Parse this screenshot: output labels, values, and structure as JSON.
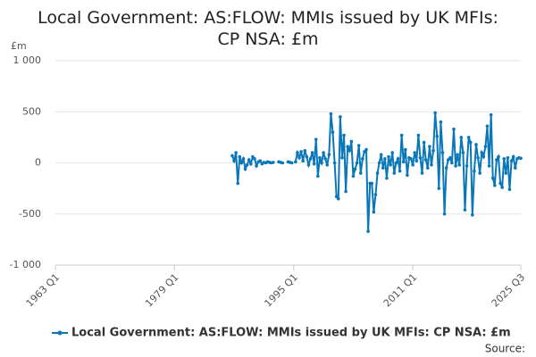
{
  "chart_data": {
    "type": "line",
    "title": "Local Government: AS:FLOW: MMIs issued by UK MFIs: CP NSA: £m",
    "y_label": "£m",
    "source": "Source:",
    "x": [
      1986.75,
      1987,
      1987.25,
      1987.5,
      1987.75,
      1988,
      1988.25,
      1988.5,
      1988.75,
      1989,
      1989.25,
      1989.5,
      1989.75,
      1990,
      1990.25,
      1990.5,
      1990.75,
      1991,
      1991.25,
      1991.5,
      1991.75,
      1992,
      1992.25,
      1992.5,
      1992.75,
      1993,
      1993.25,
      1993.5,
      1993.75,
      1994,
      1994.25,
      1994.5,
      1994.75,
      1995,
      1995.25,
      1995.5,
      1995.75,
      1996,
      1996.25,
      1996.5,
      1996.75,
      1997,
      1997.25,
      1997.5,
      1997.75,
      1998,
      1998.25,
      1998.5,
      1998.75,
      1999,
      1999.25,
      1999.5,
      1999.75,
      2000,
      2000.25,
      2000.5,
      2000.75,
      2001,
      2001.25,
      2001.5,
      2001.75,
      2002,
      2002.25,
      2002.5,
      2002.75,
      2003,
      2003.25,
      2003.5,
      2003.75,
      2004,
      2004.25,
      2004.5,
      2004.75,
      2005,
      2005.25,
      2005.5,
      2005.75,
      2006,
      2006.25,
      2006.5,
      2006.75,
      2007,
      2007.25,
      2007.5,
      2007.75,
      2008,
      2008.25,
      2008.5,
      2008.75,
      2009,
      2009.25,
      2009.5,
      2009.75,
      2010,
      2010.25,
      2010.5,
      2010.75,
      2011,
      2011.25,
      2011.5,
      2011.75,
      2012,
      2012.25,
      2012.5,
      2012.75,
      2013,
      2013.25,
      2013.5,
      2013.75,
      2014,
      2014.25,
      2014.5,
      2014.75,
      2015,
      2015.25,
      2015.5,
      2015.75,
      2016,
      2016.25,
      2016.5,
      2016.75,
      2017,
      2017.25,
      2017.5,
      2017.75,
      2018,
      2018.25,
      2018.5,
      2018.75,
      2019,
      2019.25,
      2019.5,
      2019.75,
      2020,
      2020.25,
      2020.5,
      2020.75,
      2021,
      2021.25,
      2021.5,
      2021.75,
      2022,
      2022.25,
      2022.5,
      2022.75,
      2023,
      2023.25,
      2023.5,
      2023.75,
      2024,
      2024.25,
      2024.5,
      2024.75,
      2025,
      2025.25,
      2025.5
    ],
    "series": [
      {
        "name": "Local Government: AS:FLOW: MMIs issued by UK MFIs: CP NSA: £m",
        "color": "#0a77b8",
        "values": [
          70,
          20,
          100,
          -200,
          60,
          0,
          40,
          -60,
          -20,
          30,
          -10,
          60,
          40,
          -30,
          10,
          20,
          -10,
          5,
          0,
          10,
          5,
          0,
          5,
          null,
          null,
          10,
          5,
          0,
          null,
          null,
          10,
          5,
          0,
          null,
          10,
          100,
          50,
          110,
          20,
          120,
          60,
          -20,
          40,
          100,
          -10,
          230,
          -130,
          50,
          0,
          100,
          40,
          -20,
          80,
          480,
          300,
          0,
          -330,
          -350,
          450,
          50,
          270,
          -280,
          160,
          120,
          210,
          -130,
          -60,
          0,
          170,
          -100,
          40,
          110,
          130,
          -670,
          -200,
          -200,
          -480,
          -310,
          -100,
          0,
          80,
          -50,
          40,
          -150,
          60,
          -20,
          100,
          -100,
          0,
          40,
          -80,
          270,
          10,
          130,
          -120,
          50,
          40,
          -20,
          100,
          20,
          270,
          50,
          -100,
          200,
          30,
          -50,
          160,
          -20,
          120,
          490,
          260,
          -250,
          400,
          100,
          -500,
          -50,
          30,
          50,
          0,
          330,
          -30,
          80,
          -20,
          250,
          100,
          -460,
          -30,
          250,
          200,
          -510,
          -80,
          180,
          50,
          -100,
          100,
          60,
          160,
          360,
          -30,
          470,
          -150,
          -220,
          30,
          60,
          -200,
          -240,
          40,
          -100,
          50,
          -260,
          20,
          60,
          -50,
          40,
          50,
          45
        ]
      }
    ],
    "xlim": [
      1963,
      2025.5
    ],
    "xticks": [
      {
        "value": 1963,
        "label": "1963 Q1"
      },
      {
        "value": 1979,
        "label": "1979 Q1"
      },
      {
        "value": 1995,
        "label": "1995 Q1"
      },
      {
        "value": 2011,
        "label": "2011 Q1"
      },
      {
        "value": 2025.5,
        "label": "2025 Q3"
      }
    ],
    "ylim": [
      -1000,
      1000
    ],
    "yticks": [
      {
        "value": -1000,
        "label": "-1 000"
      },
      -500,
      0,
      500,
      {
        "value": 1000,
        "label": "1 000"
      }
    ],
    "grid": true,
    "legend": "bottom"
  }
}
